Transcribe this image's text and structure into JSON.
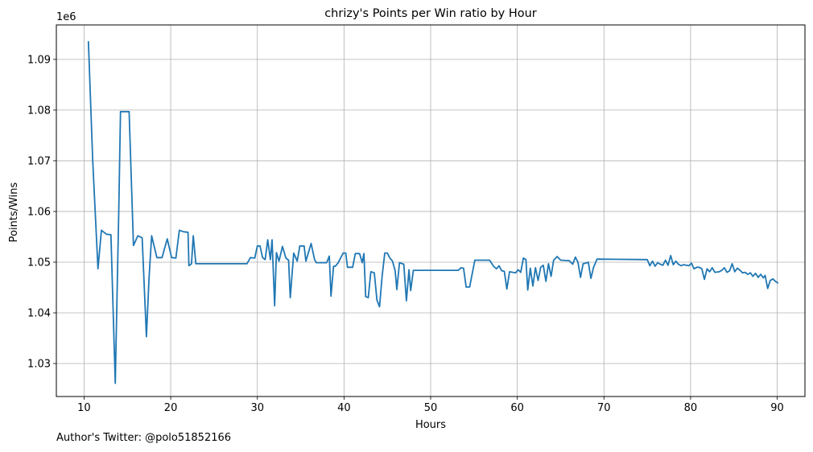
{
  "chart_data": {
    "type": "line",
    "title": "chrizy's Points per Win ratio by Hour",
    "xlabel": "Hours",
    "ylabel": "Points/Wins",
    "y_offset_label": "1e6",
    "xlim": [
      6.8,
      93.2
    ],
    "ylim": [
      1.0235,
      1.0968
    ],
    "x_ticks": [
      10,
      20,
      30,
      40,
      50,
      60,
      70,
      80,
      90
    ],
    "y_ticks": [
      1.03,
      1.04,
      1.05,
      1.06,
      1.07,
      1.08,
      1.09
    ],
    "grid": true,
    "line_color": "#1f77b4",
    "series": [
      {
        "points": [
          [
            10.5,
            1.0936
          ],
          [
            11.0,
            1.07
          ],
          [
            11.6,
            1.0487
          ],
          [
            12.0,
            1.0563
          ],
          [
            12.6,
            1.0555
          ],
          [
            13.1,
            1.0554
          ],
          [
            13.6,
            1.0261
          ],
          [
            14.0,
            1.0598
          ],
          [
            14.2,
            1.0797
          ],
          [
            15.2,
            1.0797
          ],
          [
            15.7,
            1.0533
          ],
          [
            16.2,
            1.0552
          ],
          [
            16.7,
            1.0548
          ],
          [
            17.2,
            1.0353
          ],
          [
            17.5,
            1.047
          ],
          [
            17.8,
            1.0552
          ],
          [
            18.4,
            1.0509
          ],
          [
            19.0,
            1.0509
          ],
          [
            19.6,
            1.0546
          ],
          [
            20.1,
            1.0509
          ],
          [
            20.6,
            1.0508
          ],
          [
            21.0,
            1.0563
          ],
          [
            21.5,
            1.056
          ],
          [
            22.0,
            1.0559
          ],
          [
            22.1,
            1.0493
          ],
          [
            22.4,
            1.0497
          ],
          [
            22.6,
            1.0552
          ],
          [
            22.9,
            1.0497
          ],
          [
            28.8,
            1.0497
          ],
          [
            29.2,
            1.0509
          ],
          [
            29.7,
            1.0508
          ],
          [
            30.0,
            1.0532
          ],
          [
            30.3,
            1.0532
          ],
          [
            30.6,
            1.0509
          ],
          [
            30.9,
            1.0505
          ],
          [
            31.2,
            1.0544
          ],
          [
            31.5,
            1.0505
          ],
          [
            31.7,
            1.0544
          ],
          [
            32.0,
            1.0414
          ],
          [
            32.2,
            1.0519
          ],
          [
            32.5,
            1.0502
          ],
          [
            32.9,
            1.0531
          ],
          [
            33.3,
            1.0508
          ],
          [
            33.6,
            1.0504
          ],
          [
            33.8,
            1.043
          ],
          [
            34.2,
            1.0518
          ],
          [
            34.6,
            1.0502
          ],
          [
            34.9,
            1.0532
          ],
          [
            35.4,
            1.0532
          ],
          [
            35.6,
            1.0502
          ],
          [
            36.2,
            1.0537
          ],
          [
            36.6,
            1.0505
          ],
          [
            36.8,
            1.0499
          ],
          [
            38.0,
            1.0499
          ],
          [
            38.3,
            1.0512
          ],
          [
            38.5,
            1.0433
          ],
          [
            38.8,
            1.0492
          ],
          [
            39.0,
            1.0492
          ],
          [
            39.3,
            1.0498
          ],
          [
            39.6,
            1.0508
          ],
          [
            39.9,
            1.0518
          ],
          [
            40.2,
            1.0518
          ],
          [
            40.4,
            1.049
          ],
          [
            41.0,
            1.049
          ],
          [
            41.3,
            1.0517
          ],
          [
            41.8,
            1.0517
          ],
          [
            42.1,
            1.0499
          ],
          [
            42.3,
            1.0517
          ],
          [
            42.5,
            1.0432
          ],
          [
            42.8,
            1.043
          ],
          [
            43.1,
            1.0481
          ],
          [
            43.5,
            1.0479
          ],
          [
            43.8,
            1.0425
          ],
          [
            44.1,
            1.0412
          ],
          [
            44.4,
            1.0472
          ],
          [
            44.7,
            1.0518
          ],
          [
            45.0,
            1.0518
          ],
          [
            45.3,
            1.0508
          ],
          [
            45.6,
            1.0502
          ],
          [
            45.9,
            1.0483
          ],
          [
            46.1,
            1.0446
          ],
          [
            46.4,
            1.0499
          ],
          [
            46.9,
            1.0496
          ],
          [
            47.2,
            1.0424
          ],
          [
            47.5,
            1.0485
          ],
          [
            47.7,
            1.0444
          ],
          [
            48.0,
            1.0484
          ],
          [
            53.2,
            1.0484
          ],
          [
            53.5,
            1.0489
          ],
          [
            53.8,
            1.0488
          ],
          [
            54.1,
            1.0451
          ],
          [
            54.5,
            1.0451
          ],
          [
            55.1,
            1.0504
          ],
          [
            56.8,
            1.0504
          ],
          [
            57.3,
            1.0491
          ],
          [
            57.6,
            1.0487
          ],
          [
            57.9,
            1.0493
          ],
          [
            58.2,
            1.0483
          ],
          [
            58.5,
            1.0482
          ],
          [
            58.8,
            1.0447
          ],
          [
            59.1,
            1.0481
          ],
          [
            59.8,
            1.0479
          ],
          [
            60.1,
            1.0485
          ],
          [
            60.4,
            1.048
          ],
          [
            60.7,
            1.0508
          ],
          [
            61.0,
            1.0505
          ],
          [
            61.2,
            1.0445
          ],
          [
            61.5,
            1.0488
          ],
          [
            61.8,
            1.0453
          ],
          [
            62.1,
            1.0489
          ],
          [
            62.4,
            1.0464
          ],
          [
            62.7,
            1.049
          ],
          [
            63.0,
            1.0494
          ],
          [
            63.3,
            1.0462
          ],
          [
            63.6,
            1.0497
          ],
          [
            63.9,
            1.0472
          ],
          [
            64.2,
            1.0504
          ],
          [
            64.6,
            1.0511
          ],
          [
            65.0,
            1.0504
          ],
          [
            66.0,
            1.0503
          ],
          [
            66.4,
            1.0496
          ],
          [
            66.7,
            1.051
          ],
          [
            67.0,
            1.05
          ],
          [
            67.3,
            1.047
          ],
          [
            67.6,
            1.0497
          ],
          [
            67.9,
            1.0498
          ],
          [
            68.2,
            1.05
          ],
          [
            68.5,
            1.0468
          ],
          [
            68.8,
            1.049
          ],
          [
            69.2,
            1.0506
          ],
          [
            75.0,
            1.0505
          ],
          [
            75.3,
            1.0493
          ],
          [
            75.6,
            1.0502
          ],
          [
            75.9,
            1.0492
          ],
          [
            76.2,
            1.0499
          ],
          [
            76.5,
            1.0496
          ],
          [
            76.8,
            1.0494
          ],
          [
            77.1,
            1.0504
          ],
          [
            77.4,
            1.0494
          ],
          [
            77.7,
            1.0513
          ],
          [
            78.0,
            1.0495
          ],
          [
            78.3,
            1.0502
          ],
          [
            78.6,
            1.0496
          ],
          [
            78.9,
            1.0493
          ],
          [
            79.2,
            1.0495
          ],
          [
            79.8,
            1.0493
          ],
          [
            80.1,
            1.0498
          ],
          [
            80.4,
            1.0487
          ],
          [
            80.7,
            1.049
          ],
          [
            81.0,
            1.049
          ],
          [
            81.3,
            1.0487
          ],
          [
            81.6,
            1.0466
          ],
          [
            81.9,
            1.0487
          ],
          [
            82.2,
            1.0481
          ],
          [
            82.5,
            1.0489
          ],
          [
            82.8,
            1.048
          ],
          [
            83.3,
            1.0481
          ],
          [
            83.6,
            1.0484
          ],
          [
            83.9,
            1.0489
          ],
          [
            84.2,
            1.048
          ],
          [
            84.5,
            1.0483
          ],
          [
            84.8,
            1.0497
          ],
          [
            85.1,
            1.0481
          ],
          [
            85.4,
            1.0488
          ],
          [
            85.7,
            1.0484
          ],
          [
            86.0,
            1.0479
          ],
          [
            86.3,
            1.048
          ],
          [
            86.6,
            1.0476
          ],
          [
            86.9,
            1.0479
          ],
          [
            87.2,
            1.0472
          ],
          [
            87.5,
            1.0478
          ],
          [
            87.8,
            1.047
          ],
          [
            88.1,
            1.0476
          ],
          [
            88.4,
            1.0469
          ],
          [
            88.6,
            1.0474
          ],
          [
            88.9,
            1.0448
          ],
          [
            89.2,
            1.0464
          ],
          [
            89.5,
            1.0467
          ],
          [
            89.8,
            1.0462
          ],
          [
            90.0,
            1.046
          ],
          [
            90.1,
            1.0458
          ]
        ]
      }
    ]
  },
  "footer": {
    "author": "Author's Twitter: @polo51852166"
  }
}
